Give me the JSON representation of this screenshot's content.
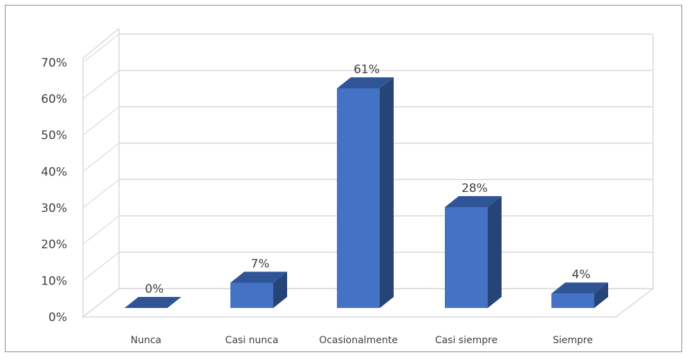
{
  "chart_data": {
    "type": "bar",
    "categories": [
      "Nunca",
      "Casi nunca",
      "Ocasionalmente",
      "Casi siempre",
      "Siempre"
    ],
    "values": [
      0,
      7,
      61,
      28,
      4
    ],
    "data_labels": [
      "0%",
      "7%",
      "61%",
      "28%",
      "4%"
    ],
    "y_tick_labels": [
      "0%",
      "10%",
      "20%",
      "30%",
      "40%",
      "50%",
      "60%",
      "70%"
    ],
    "ylim": [
      0,
      70
    ],
    "grid": true,
    "legend": "none",
    "title": "",
    "xlabel": "",
    "ylabel": "",
    "colors": {
      "bar_front": "#4472c4",
      "bar_top": "#2f5597",
      "bar_side": "#264478",
      "gridline": "#d9d9d9",
      "frame": "#8c8c8c"
    }
  }
}
